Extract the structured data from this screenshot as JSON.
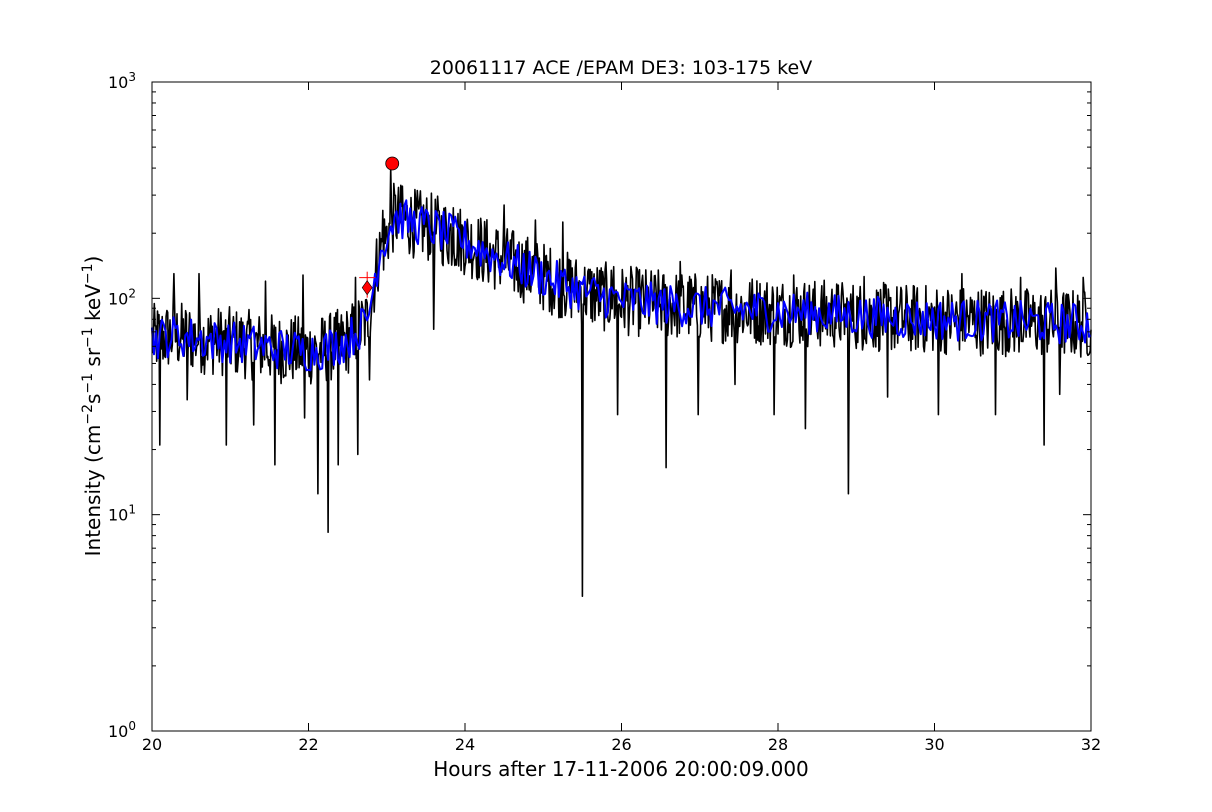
{
  "chart_data": {
    "type": "line",
    "title": "20061117 ACE /EPAM DE3: 103-175 keV",
    "xlabel": "Hours after 17-11-2006 20:00:09.000",
    "ylabel_parts": [
      "Intensity (cm",
      "−2",
      "s",
      "−1",
      " sr",
      "−1",
      " keV",
      "−1",
      ")"
    ],
    "xlim": [
      20,
      32
    ],
    "ylim": [
      1,
      1000
    ],
    "yscale": "log",
    "grid": false,
    "x_ticks": [
      20,
      22,
      24,
      26,
      28,
      30,
      32
    ],
    "x_tick_labels": [
      "20",
      "22",
      "24",
      "26",
      "28",
      "30",
      "32"
    ],
    "y_ticks": [
      {
        "value": 1,
        "base": "10",
        "exp": "0"
      },
      {
        "value": 10,
        "base": "10",
        "exp": "1"
      },
      {
        "value": 100,
        "base": "10",
        "exp": "2"
      },
      {
        "value": 1000,
        "base": "10",
        "exp": "3"
      }
    ],
    "series": [
      {
        "color": "#000000",
        "style": "raw",
        "x": [
          20.0,
          20.25,
          20.5,
          20.75,
          21.0,
          21.25,
          21.5,
          21.75,
          22.0,
          22.25,
          22.5,
          22.75,
          22.9,
          23.1,
          23.3,
          23.6,
          24.0,
          24.25,
          24.5,
          24.75,
          25.0,
          25.25,
          25.5,
          25.75,
          26.0,
          26.5,
          27.0,
          27.5,
          28.0,
          28.5,
          29.0,
          29.5,
          30.0,
          30.5,
          31.0,
          31.5,
          32.0
        ],
        "y": [
          65,
          67,
          66,
          64,
          63,
          61,
          59,
          58,
          57,
          59,
          64,
          78,
          160,
          240,
          225,
          210,
          185,
          165,
          150,
          138,
          126,
          116,
          108,
          102,
          98,
          94,
          91,
          89,
          87,
          85,
          83,
          81,
          80,
          79,
          78,
          77,
          76
        ],
        "dips": [
          [
            20.1,
            21
          ],
          [
            20.45,
            34
          ],
          [
            20.6,
            21
          ],
          [
            20.95,
            21
          ],
          [
            21.3,
            26
          ],
          [
            21.57,
            17
          ],
          [
            21.95,
            28
          ],
          [
            22.12,
            12.5
          ],
          [
            22.25,
            8.3
          ],
          [
            22.38,
            17
          ],
          [
            22.63,
            19
          ],
          [
            22.78,
            42
          ],
          [
            25.5,
            4.2
          ],
          [
            25.95,
            29
          ],
          [
            26.57,
            16.5
          ],
          [
            26.98,
            29
          ],
          [
            27.45,
            40
          ],
          [
            27.95,
            29
          ],
          [
            28.35,
            25
          ],
          [
            28.9,
            12.5
          ],
          [
            29.4,
            35
          ],
          [
            30.05,
            29
          ],
          [
            30.78,
            29
          ],
          [
            31.4,
            21
          ],
          [
            31.6,
            36
          ],
          [
            24.5,
            42
          ],
          [
            23.6,
            72
          ]
        ],
        "spikes": [
          [
            20.28,
            130
          ],
          [
            20.6,
            130
          ],
          [
            21.45,
            120
          ],
          [
            21.93,
            128
          ],
          [
            22.6,
            125
          ],
          [
            22.95,
            255
          ],
          [
            23.2,
            330
          ],
          [
            23.05,
            400
          ],
          [
            23.85,
            262
          ],
          [
            24.5,
            270
          ],
          [
            24.9,
            230
          ],
          [
            25.25,
            225
          ],
          [
            25.9,
            140
          ],
          [
            26.75,
            148
          ],
          [
            27.4,
            135
          ],
          [
            28.2,
            128
          ],
          [
            29.1,
            126
          ],
          [
            30.35,
            130
          ],
          [
            31.1,
            125
          ],
          [
            31.55,
            138
          ],
          [
            31.9,
            125
          ]
        ]
      },
      {
        "color": "#0000ff",
        "style": "smoothed",
        "x": [
          20.0,
          20.25,
          20.5,
          20.75,
          21.0,
          21.25,
          21.5,
          21.75,
          22.0,
          22.25,
          22.5,
          22.75,
          22.9,
          23.1,
          23.3,
          23.6,
          24.0,
          24.25,
          24.5,
          24.75,
          25.0,
          25.25,
          25.5,
          25.75,
          26.0,
          26.5,
          27.0,
          27.5,
          28.0,
          28.5,
          29.0,
          29.5,
          30.0,
          30.5,
          31.0,
          31.5,
          32.0
        ],
        "y": [
          65,
          67,
          66,
          64,
          63,
          61,
          59,
          58,
          57,
          59,
          64,
          78,
          160,
          240,
          225,
          210,
          185,
          165,
          150,
          138,
          126,
          116,
          108,
          102,
          98,
          94,
          91,
          89,
          87,
          85,
          83,
          81,
          80,
          79,
          78,
          77,
          76
        ]
      }
    ],
    "markers": [
      {
        "shape": "diamond",
        "color": "#ff0000",
        "x": 22.75,
        "y": 112
      },
      {
        "shape": "circle",
        "color": "#ff0000",
        "x": 23.07,
        "y": 420
      }
    ]
  }
}
